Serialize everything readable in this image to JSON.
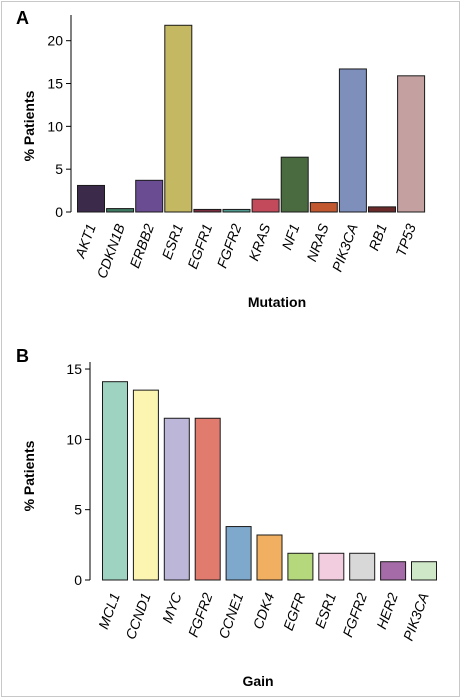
{
  "chart_data": [
    {
      "panel": "A",
      "type": "bar",
      "xlabel": "Mutation",
      "ylabel": "% Patients",
      "ylim": [
        0,
        23
      ],
      "yticks": [
        0,
        5,
        10,
        15,
        20
      ],
      "categories": [
        "AKT1",
        "CDKN1B",
        "ERBB2",
        "ESR1",
        "EGFR1",
        "FGFR2",
        "KRAS",
        "NF1",
        "NRAS",
        "PIK3CA",
        "RB1",
        "TP53"
      ],
      "values": [
        3.1,
        0.4,
        3.7,
        21.8,
        0.3,
        0.3,
        1.5,
        6.4,
        1.1,
        16.7,
        0.6,
        15.9
      ],
      "colors": [
        "#3b2a4a",
        "#3d7a62",
        "#6a4c93",
        "#c5b862",
        "#7a2d3e",
        "#4f9a8e",
        "#c24a5a",
        "#4a6a3f",
        "#c1582f",
        "#7f8fbc",
        "#6a2a2a",
        "#c4a0a0"
      ],
      "grid": false
    },
    {
      "panel": "B",
      "type": "bar",
      "xlabel": "Gain",
      "ylabel": "% Patients",
      "ylim": [
        0,
        15.5
      ],
      "yticks": [
        0,
        5,
        10,
        15
      ],
      "categories": [
        "MCL1",
        "CCND1",
        "MYC",
        "FGFR2",
        "CCNE1",
        "CDK4",
        "EGFR",
        "ESR1",
        "FGFR2",
        "HER2",
        "PIK3CA"
      ],
      "values": [
        14.1,
        13.5,
        11.5,
        11.5,
        3.8,
        3.2,
        1.9,
        1.9,
        1.9,
        1.3,
        1.3
      ],
      "colors": [
        "#9dd3c0",
        "#fbf5b1",
        "#bcb6d8",
        "#e07b6e",
        "#7ea8cc",
        "#f1b061",
        "#b5d87d",
        "#f2cde0",
        "#d8d8d8",
        "#a56aa8",
        "#cfe8c8"
      ],
      "grid": false
    }
  ]
}
